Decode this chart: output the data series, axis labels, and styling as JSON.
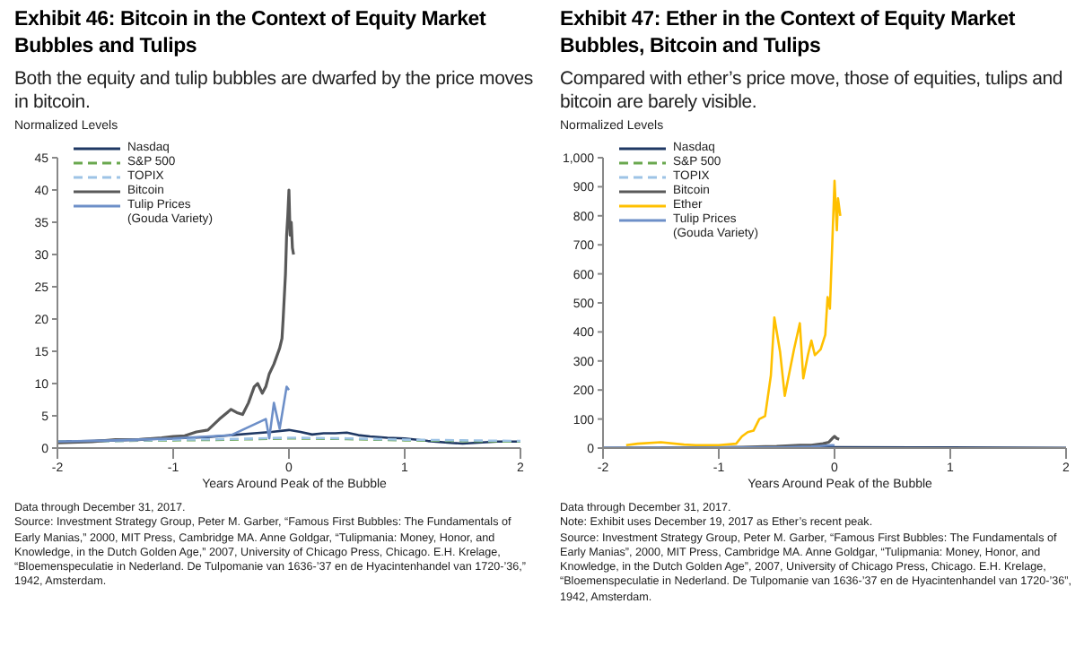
{
  "chart_data": [
    {
      "type": "line",
      "title": "Exhibit 46: Bitcoin in the Context of Equity Market Bubbles and Tulips",
      "subtitle": "Both the equity and tulip bubbles are dwarfed by the price moves in bitcoin.",
      "ylabel": "Normalized Levels",
      "xlabel": "Years Around Peak of the Bubble",
      "xlim": [
        -2,
        2
      ],
      "xticks": [
        -2,
        -1,
        0,
        1,
        2
      ],
      "ylim": [
        0,
        45
      ],
      "yticks": [
        0,
        5,
        10,
        15,
        20,
        25,
        30,
        35,
        40,
        45
      ],
      "legend": "top left",
      "marker": "none",
      "series": [
        {
          "name": "Nasdaq",
          "color": "#1f3864",
          "line_style": "solid",
          "x": [
            -2,
            -1.7,
            -1.5,
            -1.2,
            -1,
            -0.7,
            -0.5,
            -0.3,
            -0.15,
            0,
            0.1,
            0.2,
            0.3,
            0.4,
            0.5,
            0.6,
            0.7,
            0.85,
            1,
            1.2,
            1.4,
            1.5,
            1.6,
            1.8,
            2
          ],
          "values": [
            1,
            1.1,
            1.2,
            1.4,
            1.5,
            1.7,
            2,
            2.3,
            2.5,
            2.8,
            2.5,
            2.1,
            2.3,
            2.3,
            2.4,
            2,
            1.8,
            1.6,
            1.5,
            1.1,
            0.8,
            0.7,
            0.8,
            1,
            1
          ]
        },
        {
          "name": "S&P 500",
          "color": "#6aa84f",
          "line_style": "dashed",
          "x": [
            -2,
            -1.5,
            -1,
            -0.5,
            0,
            0.5,
            1,
            1.5,
            2
          ],
          "values": [
            1,
            1.1,
            1.2,
            1.3,
            1.5,
            1.4,
            1.2,
            1.1,
            1
          ]
        },
        {
          "name": "TOPIX",
          "color": "#9dc3e6",
          "line_style": "dashed",
          "x": [
            -2,
            -1.5,
            -1,
            -0.5,
            0,
            0.5,
            1,
            1.5,
            2
          ],
          "values": [
            1,
            1.1,
            1.3,
            1.4,
            1.6,
            1.5,
            1.3,
            1.2,
            1.1
          ]
        },
        {
          "name": "Bitcoin",
          "color": "#595959",
          "line_style": "solid",
          "x": [
            -2,
            -1.7,
            -1.5,
            -1.3,
            -1.1,
            -1,
            -0.9,
            -0.8,
            -0.7,
            -0.6,
            -0.5,
            -0.45,
            -0.4,
            -0.35,
            -0.3,
            -0.27,
            -0.23,
            -0.2,
            -0.17,
            -0.13,
            -0.1,
            -0.08,
            -0.06,
            -0.05,
            -0.03,
            -0.02,
            -0.01,
            0,
            0.01,
            0.02,
            0.03,
            0.04
          ],
          "values": [
            0.8,
            1,
            1.3,
            1.3,
            1.6,
            1.8,
            1.9,
            2.5,
            2.8,
            4.5,
            6,
            5.5,
            5.2,
            7,
            9.5,
            10,
            8.5,
            9.5,
            11.5,
            13,
            14.5,
            15.5,
            17,
            20,
            27,
            33,
            36,
            40,
            33,
            35,
            31,
            30
          ]
        },
        {
          "name": "Tulip Prices (Gouda Variety)",
          "color": "#6d8fc8",
          "line_style": "solid",
          "x": [
            -2,
            -1.5,
            -1,
            -0.5,
            -0.2,
            -0.17,
            -0.13,
            -0.08,
            -0.02,
            0
          ],
          "values": [
            1,
            1.2,
            1.5,
            2,
            4.5,
            1.5,
            7,
            3,
            9.5,
            9
          ]
        }
      ],
      "annotations": [
        "Data through December 31, 2017.",
        "Source: Investment Strategy Group, Peter M. Garber, “Famous First Bubbles: The Fundamentals of Early Manias,” 2000, MIT Press, Cambridge MA. Anne Goldgar, “Tulipmania: Money, Honor, and Knowledge, in the Dutch Golden Age,” 2007, University of Chicago Press, Chicago. E.H. Krelage, “Bloemenspeculatie in Nederland. De Tulpomanie van 1636-’37 en de Hyacintenhandel van 1720-’36,” 1942, Amsterdam."
      ]
    },
    {
      "type": "line",
      "title": "Exhibit 47: Ether in the Context of Equity Market Bubbles, Bitcoin and Tulips",
      "subtitle": "Compared with ether’s price move, those of equities, tulips and bitcoin are barely visible.",
      "ylabel": "Normalized Levels",
      "xlabel": "Years Around Peak of the Bubble",
      "xlim": [
        -2,
        2
      ],
      "xticks": [
        -2,
        -1,
        0,
        1,
        2
      ],
      "ylim": [
        0,
        1000
      ],
      "yticks": [
        0,
        100,
        200,
        300,
        400,
        500,
        600,
        700,
        800,
        900,
        {
          "value": 1000,
          "label": "1,000"
        }
      ],
      "legend": "top left",
      "marker": "none",
      "series": [
        {
          "name": "Nasdaq",
          "color": "#1f3864",
          "line_style": "solid",
          "x": [
            -2,
            -1,
            0,
            1,
            2
          ],
          "values": [
            1,
            2,
            3,
            2,
            1
          ]
        },
        {
          "name": "S&P 500",
          "color": "#6aa84f",
          "line_style": "dashed"
        },
        {
          "name": "TOPIX",
          "color": "#9dc3e6",
          "line_style": "dashed"
        },
        {
          "name": "Bitcoin",
          "color": "#595959",
          "line_style": "solid",
          "x": [
            -1.5,
            -1,
            -0.8,
            -0.6,
            -0.5,
            -0.3,
            -0.2,
            -0.1,
            -0.05,
            -0.02,
            0,
            0.02,
            0.04
          ],
          "values": [
            1,
            2,
            3,
            5,
            6,
            10,
            10,
            15,
            20,
            33,
            40,
            33,
            30
          ]
        },
        {
          "name": "Ether",
          "color": "#ffc000",
          "line_style": "solid",
          "x": [
            -1.8,
            -1.7,
            -1.5,
            -1.3,
            -1.2,
            -1,
            -0.85,
            -0.8,
            -0.75,
            -0.7,
            -0.65,
            -0.6,
            -0.55,
            -0.52,
            -0.47,
            -0.43,
            -0.4,
            -0.35,
            -0.3,
            -0.27,
            -0.23,
            -0.2,
            -0.17,
            -0.12,
            -0.08,
            -0.06,
            -0.04,
            -0.02,
            0,
            0.02,
            0.03,
            0.05
          ],
          "values": [
            10,
            15,
            20,
            12,
            10,
            10,
            15,
            40,
            55,
            60,
            100,
            110,
            250,
            450,
            330,
            180,
            240,
            340,
            430,
            240,
            320,
            370,
            320,
            340,
            390,
            520,
            480,
            700,
            920,
            750,
            860,
            800
          ]
        },
        {
          "name": "Tulip Prices (Gouda Variety)",
          "color": "#6d8fc8",
          "line_style": "solid",
          "x": [
            -2,
            -1,
            -0.5,
            -0.2,
            -0.13,
            -0.02,
            0
          ],
          "values": [
            1,
            2,
            2,
            5,
            7,
            10,
            9
          ]
        }
      ],
      "annotations": [
        "Data through December 31, 2017.",
        "Note: Exhibit uses December 19, 2017 as Ether’s recent peak.",
        "Source: Investment Strategy Group, Peter M. Garber, “Famous First Bubbles: The Fundamentals of Early Manias”, 2000, MIT Press, Cambridge MA. Anne Goldgar, “Tulipmania: Money, Honor, and Knowledge, in the Dutch Golden Age”, 2007, University of Chicago Press, Chicago. E.H. Krelage, “Bloemenspeculatie in Nederland. De Tulpomanie van 1636-’37 en de Hyacintenhandel van 1720-’36”, 1942, Amsterdam."
      ]
    }
  ]
}
